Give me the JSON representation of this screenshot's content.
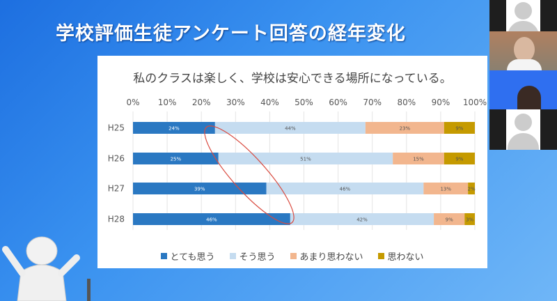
{
  "slide": {
    "title": "学校評価生徒アンケート回答の経年変化"
  },
  "chart_data": {
    "type": "bar",
    "orientation": "horizontal",
    "stacked": true,
    "title": "私のクラスは楽しく、学校は安心できる場所になっている。",
    "categories": [
      "H25",
      "H26",
      "H27",
      "H28"
    ],
    "xlim": [
      0,
      100
    ],
    "x_ticks": [
      "0%",
      "10%",
      "20%",
      "30%",
      "40%",
      "50%",
      "60%",
      "70%",
      "80%",
      "90%",
      "100%"
    ],
    "grid": true,
    "legend_position": "bottom",
    "series": [
      {
        "name": "とても思う",
        "color": "#2a78c2",
        "values": [
          24,
          25,
          39,
          46
        ]
      },
      {
        "name": "そう思う",
        "color": "#c5dcf0",
        "values": [
          44,
          51,
          46,
          42
        ]
      },
      {
        "name": "あまり思わない",
        "color": "#f2b68e",
        "values": [
          23,
          15,
          13,
          9
        ]
      },
      {
        "name": "思わない",
        "color": "#c59a00",
        "values": [
          9,
          9,
          2,
          3
        ]
      }
    ],
    "annotation": "red ellipse highlighting growth of とても思う"
  },
  "video_panel": {
    "participants": [
      "participant-1",
      "participant-2",
      "participant-3",
      "participant-4"
    ]
  }
}
